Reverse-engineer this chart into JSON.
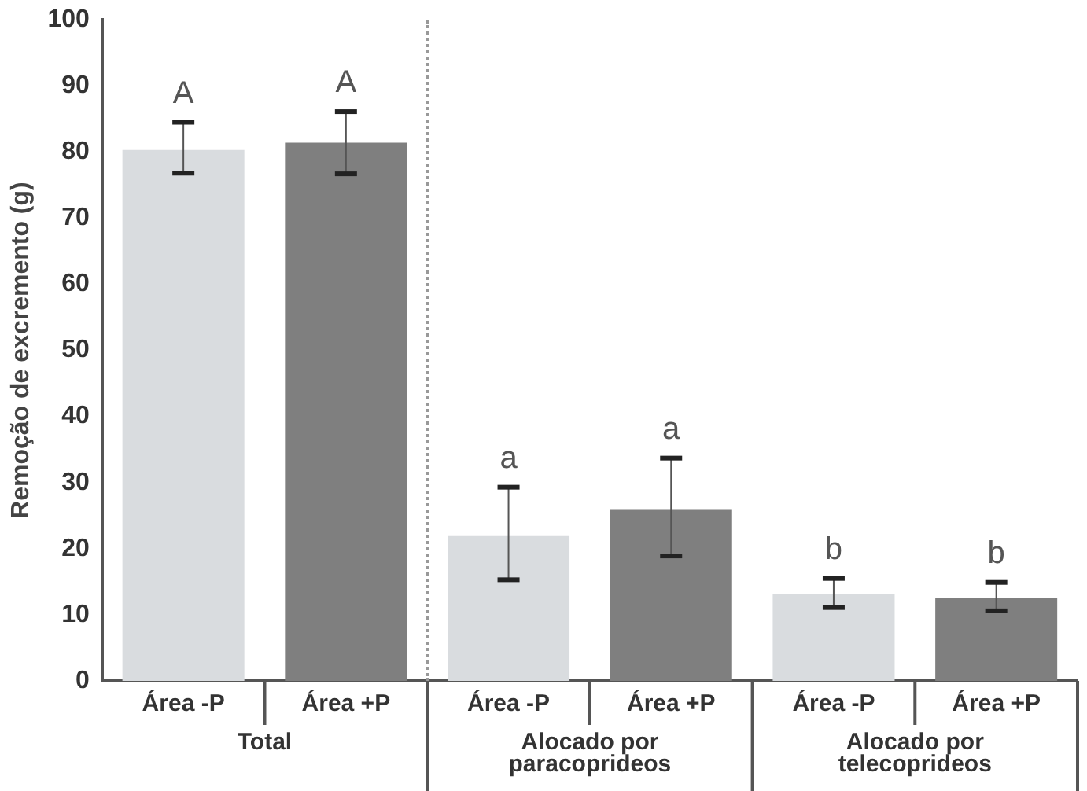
{
  "chart_data": {
    "type": "bar",
    "ylabel": "Remoção de excremento (g)",
    "categories": [
      "Área -P",
      "Área +P",
      "Área -P",
      "Área +P",
      "Área -P",
      "Área +P"
    ],
    "values": [
      80.3,
      81.4,
      21.9,
      26.0,
      13.1,
      12.5
    ],
    "colors": [
      "#d9dcdf",
      "#7f7f7f",
      "#d9dcdf",
      "#7f7f7f",
      "#d9dcdf",
      "#7f7f7f"
    ],
    "errors": [
      [
        76.8,
        84.5
      ],
      [
        76.7,
        86.1
      ],
      [
        15.3,
        29.3
      ],
      [
        18.9,
        33.7
      ],
      [
        11.1,
        15.5
      ],
      [
        10.6,
        14.9
      ]
    ],
    "ylim": [
      0,
      100
    ],
    "yticks": [
      0,
      10,
      20,
      30,
      40,
      50,
      60,
      70,
      80,
      90,
      100
    ],
    "annotations": [
      "A",
      "A",
      "a",
      "a",
      "b",
      "b",
      "Total",
      "Alocado por\nparacoprideos",
      "Alocado por\ntelecoprideos"
    ],
    "grid": false,
    "legend": false
  }
}
